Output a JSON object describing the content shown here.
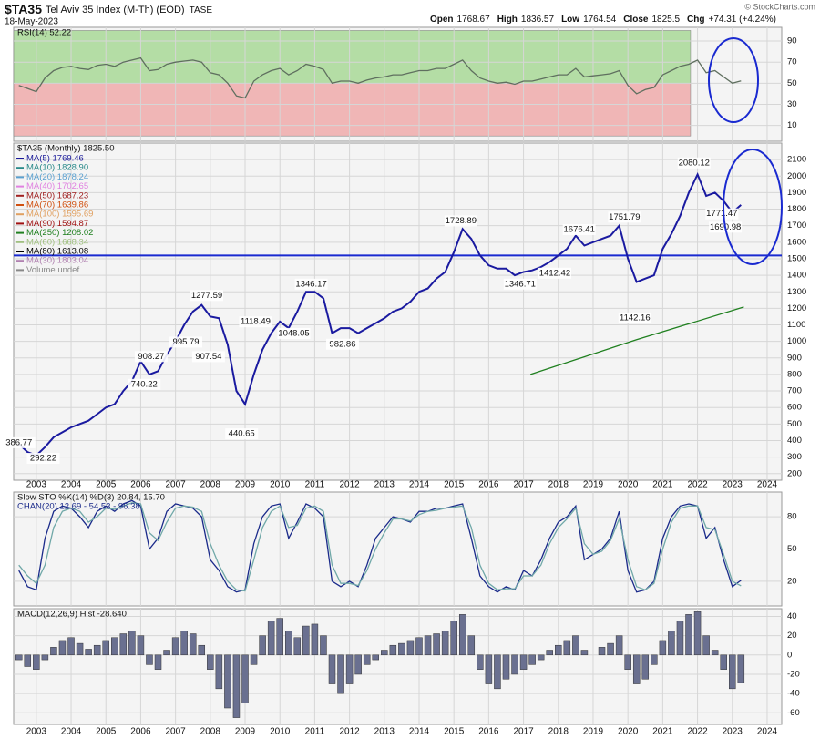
{
  "header": {
    "symbol": "$TA35",
    "name": "Tel Aviv 35 Index (M-Th) (EOD)",
    "exchange": "TASE",
    "date": "18-May-2023",
    "copyright": "© StockCharts.com",
    "quote": [
      {
        "label": "Open",
        "value": 1768.67
      },
      {
        "label": "High",
        "value": 1836.57
      },
      {
        "label": "Low",
        "value": 1764.54
      },
      {
        "label": "Close",
        "value": 1825.5
      },
      {
        "label": "Chg",
        "value": "+74.31 (+4.24%)"
      }
    ]
  },
  "chart_data": {
    "type": "stock",
    "xlim": [
      2002.35,
      2024.42
    ],
    "xticks": [
      2003,
      2004,
      2005,
      2006,
      2007,
      2008,
      2009,
      2010,
      2011,
      2012,
      2013,
      2014,
      2015,
      2016,
      2017,
      2018,
      2019,
      2020,
      2021,
      2022,
      2023,
      2024
    ],
    "x": [
      2002.5,
      2002.75,
      2003,
      2003.25,
      2003.5,
      2003.75,
      2004,
      2004.25,
      2004.5,
      2004.75,
      2005,
      2005.25,
      2005.5,
      2005.75,
      2006,
      2006.25,
      2006.5,
      2006.75,
      2007,
      2007.25,
      2007.5,
      2007.75,
      2008,
      2008.25,
      2008.5,
      2008.75,
      2009,
      2009.25,
      2009.5,
      2009.75,
      2010,
      2010.25,
      2010.5,
      2010.75,
      2011,
      2011.25,
      2011.5,
      2011.75,
      2012,
      2012.25,
      2012.5,
      2012.75,
      2013,
      2013.25,
      2013.5,
      2013.75,
      2014,
      2014.25,
      2014.5,
      2014.75,
      2015,
      2015.25,
      2015.5,
      2015.75,
      2016,
      2016.25,
      2016.5,
      2016.75,
      2017,
      2017.25,
      2017.5,
      2017.75,
      2018,
      2018.25,
      2018.5,
      2018.75,
      2019,
      2019.25,
      2019.5,
      2019.75,
      2020,
      2020.25,
      2020.5,
      2020.75,
      2021,
      2021.25,
      2021.5,
      2021.75,
      2022,
      2022.25,
      2022.5,
      2022.75,
      2023,
      2023.25
    ],
    "panels": [
      {
        "type": "line",
        "label": "RSI(14) 52.22",
        "ylim": [
          -5,
          103
        ],
        "yticks": [
          10,
          30,
          50,
          70,
          90
        ],
        "grid": true,
        "zone_x_end": 2021.8,
        "zones": [
          {
            "from": 50,
            "to": 100,
            "color": "#a8d896"
          },
          {
            "from": 0,
            "to": 50,
            "color": "#eeaaaa"
          }
        ],
        "series": [
          {
            "color": "#5f6f5f",
            "values": [
              48,
              45,
              42,
              55,
              62,
              65,
              66,
              64,
              63,
              67,
              68,
              66,
              70,
              72,
              74,
              62,
              63,
              68,
              70,
              71,
              72,
              70,
              60,
              58,
              50,
              38,
              36,
              52,
              58,
              62,
              64,
              58,
              62,
              68,
              66,
              63,
              50,
              52,
              52,
              50,
              53,
              55,
              56,
              58,
              58,
              60,
              62,
              62,
              64,
              64,
              68,
              72,
              62,
              55,
              52,
              50,
              51,
              49,
              52,
              52,
              54,
              56,
              58,
              58,
              64,
              56,
              57,
              58,
              59,
              62,
              48,
              40,
              44,
              46,
              58,
              62,
              66,
              68,
              72,
              60,
              62,
              56,
              50,
              52.22
            ]
          }
        ]
      },
      {
        "type": "line",
        "label": "$TA35 (Monthly) 1825.50",
        "ylim": [
          160,
          2200
        ],
        "yticks": [
          200,
          300,
          400,
          500,
          600,
          700,
          800,
          900,
          1000,
          1100,
          1200,
          1300,
          1400,
          1500,
          1600,
          1700,
          1800,
          1900,
          2000,
          2100
        ],
        "grid": true,
        "legend": [
          {
            "name": "MA(5) 1769.46",
            "color": "#1a1a9a"
          },
          {
            "name": "MA(10) 1828.90",
            "color": "#2a8a8a"
          },
          {
            "name": "MA(20) 1878.24",
            "color": "#5aa0d0"
          },
          {
            "name": "MA(40) 1702.65",
            "color": "#e080e0"
          },
          {
            "name": "MA(50) 1687.23",
            "color": "#a02020"
          },
          {
            "name": "MA(70) 1639.86",
            "color": "#d05010"
          },
          {
            "name": "MA(100) 1595.69",
            "color": "#e0a060"
          },
          {
            "name": "MA(90) 1594.87",
            "color": "#a01010"
          },
          {
            "name": "MA(250) 1208.02",
            "color": "#208020"
          },
          {
            "name": "MA(60) 1668.34",
            "color": "#a0c080"
          },
          {
            "name": "MA(80) 1613.08",
            "color": "#000000"
          },
          {
            "name": "MA(30) 1803.04",
            "color": "#b080b0"
          },
          {
            "name": "Volume undef",
            "color": "#888888"
          }
        ],
        "hline": {
          "value": 1520,
          "color": "#1a2ad0"
        },
        "series": [
          {
            "color": "#1a1aa0",
            "values": [
              380,
              330,
              310,
              360,
              420,
              450,
              480,
              500,
              520,
              560,
              600,
              620,
              700,
              760,
              880,
              800,
              820,
              920,
              1000,
              1100,
              1180,
              1220,
              1150,
              1140,
              980,
              700,
              620,
              800,
              950,
              1050,
              1120,
              1080,
              1180,
              1300,
              1300,
              1260,
              1050,
              1080,
              1080,
              1050,
              1080,
              1110,
              1140,
              1180,
              1200,
              1240,
              1300,
              1320,
              1380,
              1420,
              1540,
              1680,
              1620,
              1520,
              1460,
              1440,
              1440,
              1400,
              1420,
              1430,
              1450,
              1480,
              1520,
              1560,
              1640,
              1580,
              1600,
              1620,
              1640,
              1700,
              1500,
              1360,
              1380,
              1400,
              1560,
              1650,
              1760,
              1900,
              2010,
              1880,
              1900,
              1850,
              1780,
              1825.5
            ]
          },
          {
            "color": "#208020",
            "x": [
              2017.2,
              2020.25,
              2023.33
            ],
            "values": [
              800,
              1010,
              1208.02
            ]
          }
        ],
        "annotations": [
          {
            "x": 2002.5,
            "value": 386.77
          },
          {
            "x": 2003.2,
            "value": 292.22
          },
          {
            "x": 2006.1,
            "value": 740.22
          },
          {
            "x": 2006.3,
            "value": 908.27
          },
          {
            "x": 2007.3,
            "value": 995.79
          },
          {
            "x": 2007.9,
            "value": 1277.59
          },
          {
            "x": 2007.95,
            "value": 907.54
          },
          {
            "x": 2008.9,
            "value": 440.65
          },
          {
            "x": 2009.3,
            "value": 1118.49
          },
          {
            "x": 2010.4,
            "value": 1048.05
          },
          {
            "x": 2010.9,
            "value": 1346.17
          },
          {
            "x": 2011.8,
            "value": 982.86
          },
          {
            "x": 2015.2,
            "value": 1728.89
          },
          {
            "x": 2016.9,
            "value": 1346.71
          },
          {
            "x": 2017.9,
            "value": 1412.42
          },
          {
            "x": 2018.6,
            "value": 1676.41
          },
          {
            "x": 2019.9,
            "value": 1751.79
          },
          {
            "x": 2020.2,
            "value": 1142.16
          },
          {
            "x": 2021.9,
            "value": 2080.12
          },
          {
            "x": 2022.7,
            "value": 1771.47
          },
          {
            "x": 2022.8,
            "value": 1690.98
          }
        ]
      },
      {
        "type": "line",
        "label": "Slow STO %K(14) %D(3) 20.84, 15.70",
        "label2": "CHAN(20) 12.69 - 54.53 - 96.38",
        "ylim": [
          -3,
          103
        ],
        "yticks": [
          20,
          50,
          80
        ],
        "grid": true,
        "series": [
          {
            "color": "#1a2a8a",
            "values": [
              30,
              15,
              12,
              60,
              85,
              90,
              88,
              80,
              70,
              85,
              90,
              85,
              92,
              95,
              90,
              50,
              60,
              85,
              92,
              90,
              88,
              80,
              40,
              30,
              15,
              10,
              12,
              55,
              80,
              90,
              92,
              60,
              75,
              92,
              88,
              80,
              20,
              15,
              20,
              15,
              35,
              60,
              70,
              80,
              78,
              75,
              85,
              85,
              88,
              88,
              90,
              92,
              60,
              25,
              15,
              10,
              15,
              12,
              30,
              25,
              40,
              60,
              75,
              80,
              90,
              40,
              45,
              50,
              60,
              85,
              30,
              10,
              12,
              20,
              60,
              80,
              90,
              92,
              90,
              60,
              70,
              40,
              15,
              20.84
            ]
          },
          {
            "color": "#70a8a8",
            "values": [
              35,
              25,
              18,
              35,
              70,
              85,
              88,
              85,
              75,
              80,
              88,
              87,
              90,
              93,
              92,
              65,
              58,
              75,
              88,
              90,
              89,
              85,
              55,
              35,
              20,
              12,
              11,
              40,
              70,
              85,
              90,
              70,
              72,
              88,
              90,
              85,
              35,
              18,
              18,
              16,
              30,
              50,
              65,
              78,
              78,
              76,
              82,
              85,
              86,
              88,
              89,
              90,
              70,
              35,
              18,
              12,
              13,
              13,
              25,
              25,
              35,
              55,
              70,
              78,
              88,
              55,
              45,
              48,
              58,
              78,
              40,
              15,
              12,
              18,
              50,
              75,
              88,
              90,
              90,
              70,
              68,
              45,
              20,
              15.7
            ]
          }
        ]
      },
      {
        "type": "bar",
        "label": "MACD(12,26,9) Hist -28.640",
        "ylim": [
          -72,
          48
        ],
        "yticks": [
          -60,
          -40,
          -20,
          0,
          20,
          40
        ],
        "grid": true,
        "series": [
          {
            "color": "#6a7090",
            "values": [
              -5,
              -12,
              -15,
              -5,
              8,
              15,
              18,
              12,
              6,
              10,
              15,
              18,
              22,
              25,
              20,
              -10,
              -15,
              5,
              18,
              25,
              22,
              10,
              -15,
              -35,
              -55,
              -65,
              -50,
              -10,
              20,
              35,
              38,
              25,
              18,
              30,
              32,
              20,
              -30,
              -40,
              -30,
              -20,
              -10,
              -5,
              5,
              10,
              12,
              15,
              18,
              20,
              22,
              25,
              35,
              42,
              20,
              -15,
              -30,
              -35,
              -25,
              -20,
              -15,
              -10,
              -5,
              5,
              10,
              15,
              20,
              5,
              0,
              8,
              12,
              20,
              -15,
              -30,
              -25,
              -10,
              15,
              25,
              35,
              42,
              45,
              20,
              5,
              -15,
              -35,
              -28.64
            ]
          }
        ]
      }
    ]
  }
}
